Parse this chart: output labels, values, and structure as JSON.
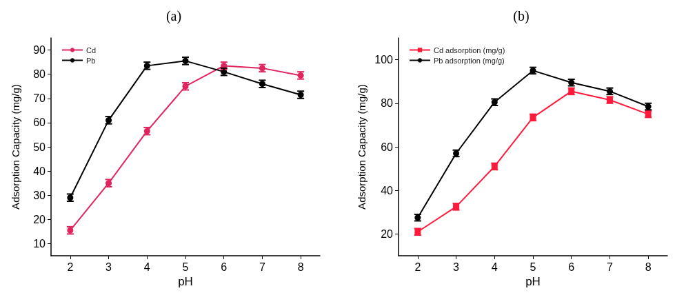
{
  "chart_data": [
    {
      "type": "line",
      "title": "(a)",
      "xlabel": "pH",
      "ylabel": "Adsorption Capacity (mg/g)",
      "x": [
        2,
        3,
        4,
        5,
        6,
        7,
        8
      ],
      "xlim": [
        1.5,
        8.5
      ],
      "xticks": [
        2,
        3,
        4,
        5,
        6,
        7,
        8
      ],
      "ylim": [
        5,
        95
      ],
      "yticks": [
        10,
        20,
        30,
        40,
        50,
        60,
        70,
        80,
        90
      ],
      "grid": false,
      "legend": "top left",
      "series": [
        {
          "name": "Cd",
          "color": "#e0245e",
          "marker": "circle",
          "values": [
            15.5,
            35,
            56.5,
            75,
            83.5,
            82.5,
            79.5
          ],
          "errors": [
            1.5,
            1.5,
            1.5,
            1.5,
            1.5,
            1.5,
            1.5
          ]
        },
        {
          "name": "Pb",
          "color": "#000000",
          "marker": "circle",
          "values": [
            29,
            61,
            83.5,
            85.5,
            81,
            76,
            71.5
          ],
          "errors": [
            1.5,
            1.5,
            1.5,
            1.5,
            1.5,
            1.5,
            1.5
          ]
        }
      ]
    },
    {
      "type": "line",
      "title": "(b)",
      "xlabel": "pH",
      "ylabel": "Adsorption Capacity (mg/g)",
      "x": [
        2,
        3,
        4,
        5,
        6,
        7,
        8
      ],
      "xlim": [
        1.5,
        8.5
      ],
      "xticks": [
        2,
        3,
        4,
        5,
        6,
        7,
        8
      ],
      "ylim": [
        10,
        110
      ],
      "yticks": [
        20,
        40,
        60,
        80,
        100
      ],
      "grid": false,
      "legend": "top left",
      "series": [
        {
          "name": "Cd adsorption (mg/g)",
          "color": "#ff1a3c",
          "marker": "square",
          "values": [
            21,
            32.5,
            51,
            73.5,
            85.5,
            81.5,
            75
          ],
          "errors": [
            1.5,
            1.5,
            1.5,
            1.5,
            1.5,
            1.5,
            1.5
          ]
        },
        {
          "name": "Pb adsorption (mg/g)",
          "color": "#000000",
          "marker": "circle",
          "values": [
            27.5,
            57,
            80.5,
            95,
            89.5,
            85.5,
            78.5
          ],
          "errors": [
            1.5,
            1.5,
            1.5,
            1.5,
            1.5,
            1.5,
            1.5
          ]
        }
      ]
    }
  ]
}
